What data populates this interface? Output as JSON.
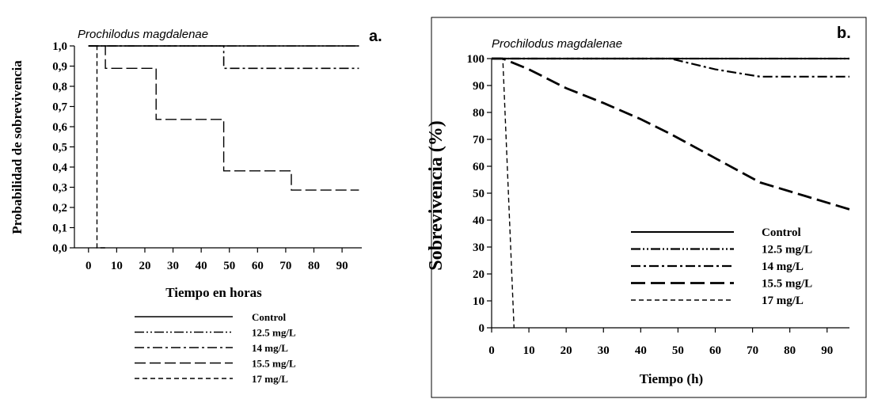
{
  "chart_data": [
    {
      "type": "line",
      "panel_label": "a.",
      "species": "Prochilodus magdalenae",
      "xlabel": "Tiempo en horas",
      "ylabel": "Probabilidad de sobrevivencia",
      "xlim": [
        -5,
        97
      ],
      "ylim": [
        0,
        1.0
      ],
      "xticks": [
        0,
        10,
        20,
        30,
        40,
        50,
        60,
        70,
        80,
        90
      ],
      "yticks": [
        "0,0",
        "0,1",
        "0,2",
        "0,3",
        "0,4",
        "0,5",
        "0,6",
        "0,7",
        "0,8",
        "0,9",
        "1,0"
      ],
      "grid": false,
      "legend_position": "below",
      "series": [
        {
          "name": "Control",
          "style": "solid",
          "x": [
            0,
            96
          ],
          "y": [
            1.0,
            1.0
          ]
        },
        {
          "name": "12.5 mg/L",
          "style": "dash-dot-dot",
          "x": [
            0,
            96
          ],
          "y": [
            1.0,
            1.0
          ]
        },
        {
          "name": "14 mg/L",
          "style": "dash-dot",
          "x": [
            0,
            48,
            48,
            96
          ],
          "y": [
            1.0,
            1.0,
            0.889,
            0.889
          ]
        },
        {
          "name": "15.5 mg/L",
          "style": "long-dash",
          "x": [
            0,
            6,
            6,
            24,
            24,
            48,
            48,
            72,
            72,
            96
          ],
          "y": [
            1.0,
            1.0,
            0.889,
            0.889,
            0.636,
            0.636,
            0.381,
            0.381,
            0.286,
            0.286
          ]
        },
        {
          "name": "17 mg/L",
          "style": "short-dash",
          "x": [
            0,
            3,
            3,
            6
          ],
          "y": [
            1.0,
            1.0,
            0.0,
            0.0
          ]
        }
      ]
    },
    {
      "type": "line",
      "panel_label": "b.",
      "species": "Prochilodus magdalenae",
      "xlabel": "Tiempo (h)",
      "ylabel": "Sobrevivencia (%)",
      "xlim": [
        0,
        96
      ],
      "ylim": [
        0,
        100
      ],
      "xticks": [
        0,
        10,
        20,
        30,
        40,
        50,
        60,
        70,
        80,
        90
      ],
      "yticks": [
        0,
        10,
        20,
        30,
        40,
        50,
        60,
        70,
        80,
        90,
        100
      ],
      "grid": false,
      "legend_position": "bottom-right",
      "series": [
        {
          "name": "Control",
          "style": "solid",
          "x": [
            0,
            96
          ],
          "y": [
            100,
            100
          ]
        },
        {
          "name": "12.5 mg/L",
          "style": "dash-dot-dot",
          "x": [
            0,
            96
          ],
          "y": [
            100,
            100
          ]
        },
        {
          "name": "14 mg/L",
          "style": "dash-dot",
          "x": [
            0,
            48,
            60,
            72,
            96
          ],
          "y": [
            100,
            100,
            96,
            93.3,
            93.3
          ]
        },
        {
          "name": "15.5 mg/L",
          "style": "long-dash",
          "x": [
            0,
            3,
            10,
            20,
            30,
            40,
            48,
            60,
            72,
            84,
            96
          ],
          "y": [
            100,
            100,
            96,
            89,
            83.5,
            77.5,
            72,
            63,
            54,
            49,
            44
          ]
        },
        {
          "name": "17 mg/L",
          "style": "short-dash",
          "x": [
            0,
            3,
            6
          ],
          "y": [
            100,
            100,
            0
          ]
        }
      ]
    }
  ]
}
